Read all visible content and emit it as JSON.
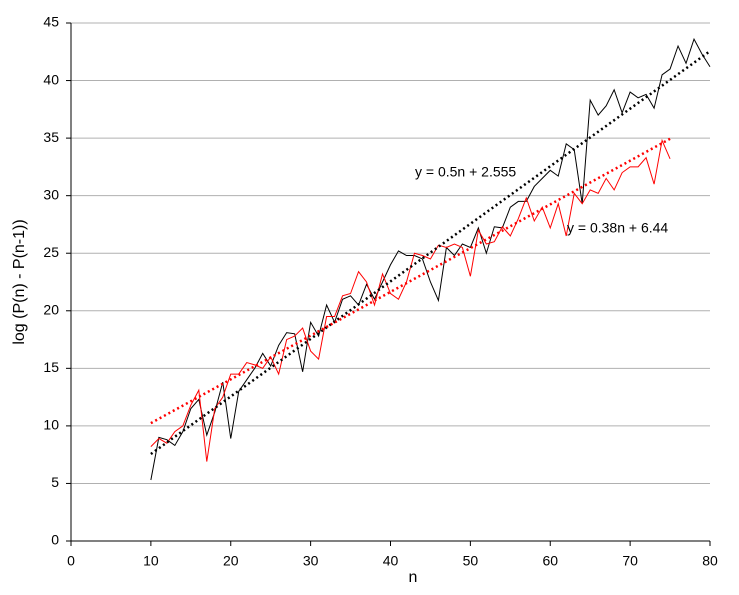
{
  "chart_data": {
    "type": "line",
    "xlabel": "n",
    "ylabel": "log (P(n) - P(n-1))",
    "xlim": [
      0,
      80
    ],
    "xticks": [
      0,
      10,
      20,
      30,
      40,
      50,
      60,
      70,
      80
    ],
    "ylim": [
      0,
      45
    ],
    "yticks": [
      0,
      5,
      10,
      15,
      20,
      25,
      30,
      35,
      40,
      45
    ],
    "grid": true,
    "series": [
      {
        "color": "#000000",
        "x": [
          10,
          11,
          12,
          13,
          14,
          15,
          16,
          17,
          18,
          19,
          20,
          21,
          22,
          23,
          24,
          25,
          26,
          27,
          28,
          29,
          30,
          31,
          32,
          33,
          34,
          35,
          36,
          37,
          38,
          39,
          40,
          41,
          42,
          43,
          44,
          45,
          46,
          47,
          48,
          49,
          50,
          51,
          52,
          53,
          54,
          55,
          56,
          57,
          58,
          59,
          60,
          61,
          62,
          63,
          64,
          65,
          66,
          67,
          68,
          69,
          70,
          71,
          72,
          73,
          74,
          75,
          76,
          77,
          78,
          79,
          80
        ],
        "values": [
          5.3,
          9,
          8.8,
          8.3,
          9.5,
          11.5,
          12.3,
          9.2,
          11.2,
          13.8,
          8.9,
          13,
          14,
          15,
          16.3,
          15.2,
          17,
          18.1,
          18,
          14.7,
          19,
          17.8,
          20.5,
          19,
          21,
          21.3,
          20.5,
          22.3,
          21,
          22.5,
          24,
          25.2,
          24.8,
          24.8,
          24.5,
          22.5,
          20.9,
          25.5,
          24.8,
          25.8,
          25.5,
          27.2,
          25,
          27.3,
          27.2,
          29,
          29.5,
          29.5,
          30.8,
          31.5,
          32.2,
          31.7,
          34.5,
          34,
          29.3,
          38.3,
          37,
          37.8,
          39.2,
          37.2,
          39,
          38.5,
          38.8,
          37.6,
          40.5,
          41,
          43,
          41.5,
          43.6,
          42.3,
          41.2
        ]
      },
      {
        "color": "#ff0000",
        "x": [
          10,
          11,
          12,
          13,
          14,
          15,
          16,
          17,
          18,
          19,
          20,
          21,
          22,
          23,
          24,
          25,
          26,
          27,
          28,
          29,
          30,
          31,
          32,
          33,
          34,
          35,
          36,
          37,
          38,
          39,
          40,
          41,
          42,
          43,
          44,
          45,
          46,
          47,
          48,
          49,
          50,
          51,
          52,
          53,
          54,
          55,
          56,
          57,
          58,
          59,
          60,
          61,
          62,
          63,
          64,
          65,
          66,
          67,
          68,
          69,
          70,
          71,
          72,
          73,
          74,
          75
        ],
        "values": [
          8.2,
          8.9,
          8.5,
          9.5,
          10,
          11.8,
          13.1,
          6.9,
          11.5,
          12.5,
          14.5,
          14.5,
          15.5,
          15.3,
          15,
          16,
          14.5,
          17.5,
          17.8,
          18.5,
          16.5,
          15.8,
          19.5,
          19.5,
          21.3,
          21.5,
          23.4,
          22.5,
          20.5,
          23.2,
          21.5,
          21,
          22.5,
          25,
          24.8,
          24.5,
          25.7,
          25.5,
          25.8,
          25.5,
          23,
          27,
          25.8,
          26,
          27.3,
          26.5,
          28,
          29.8,
          27.8,
          29,
          27.2,
          29.3,
          26.5,
          30.2,
          29.3,
          30.5,
          30.2,
          31.5,
          30.5,
          32,
          32.5,
          32.5,
          33.3,
          31,
          34.8,
          33.2
        ]
      }
    ],
    "trendlines": [
      {
        "color": "#000000",
        "slope": 0.5,
        "intercept": 2.555,
        "x": [
          10,
          80
        ],
        "label": "y = 0.5n + 2.555"
      },
      {
        "color": "#ff0000",
        "slope": 0.38,
        "intercept": 6.44,
        "x": [
          10,
          75
        ],
        "label": "y = 0.38n + 6.44"
      }
    ]
  }
}
